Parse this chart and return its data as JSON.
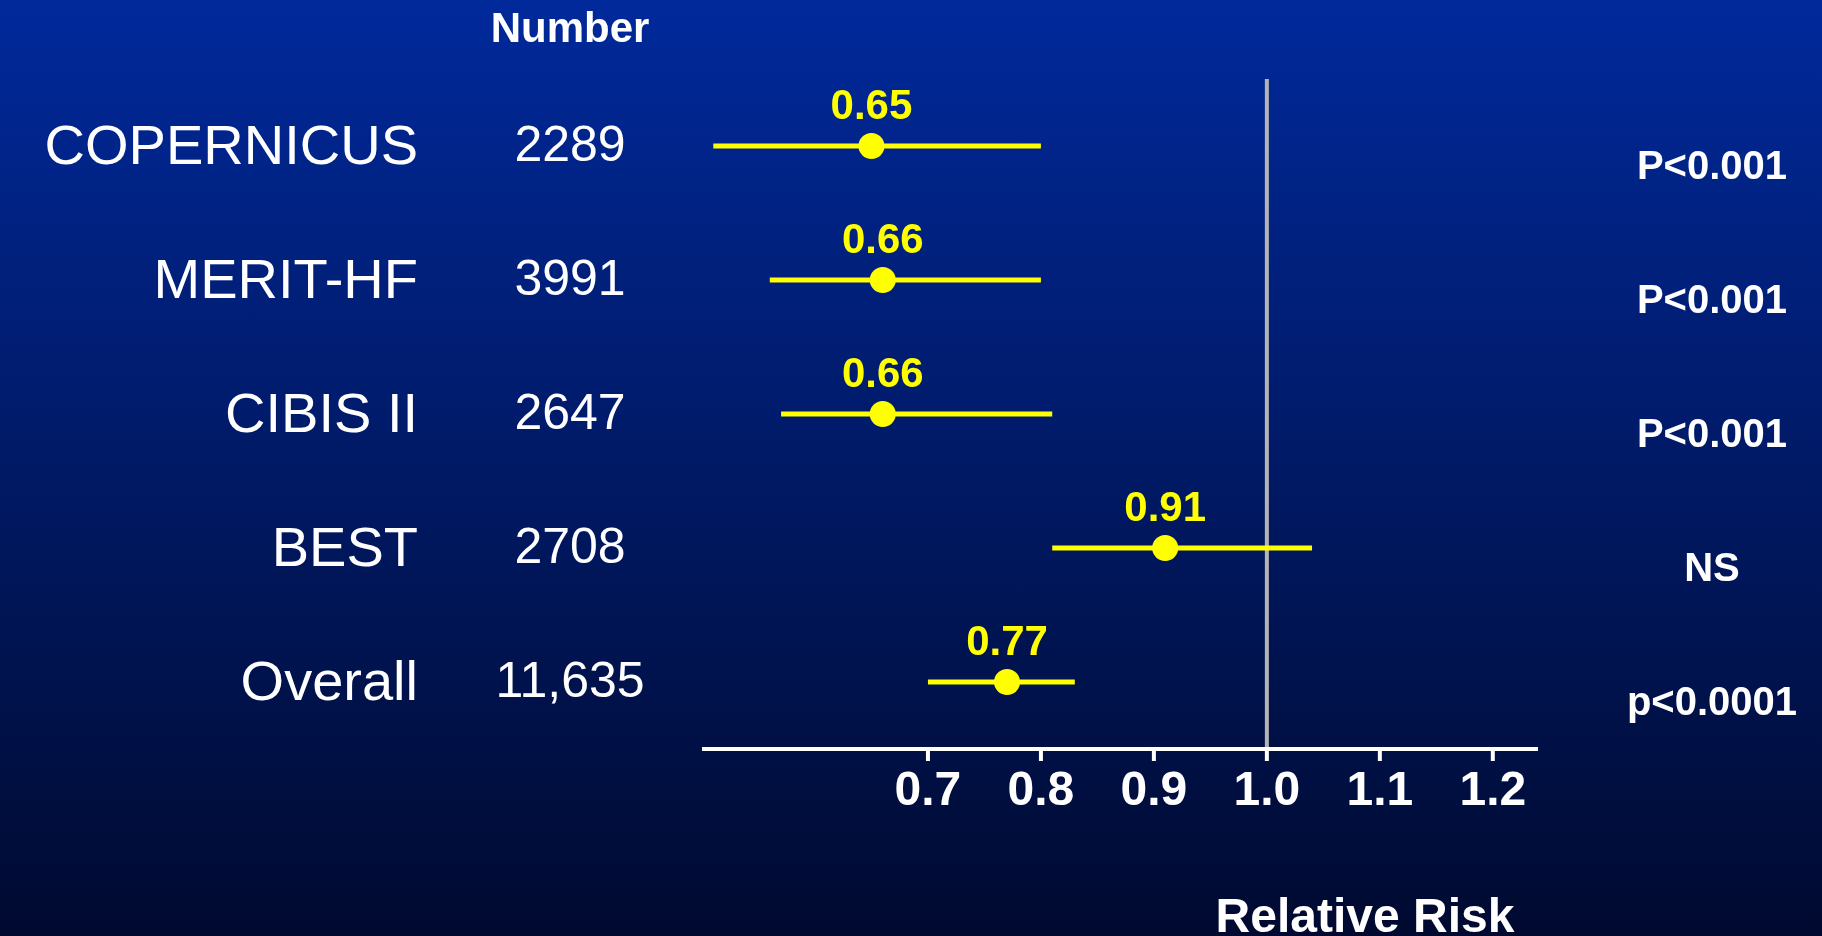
{
  "chart_data": {
    "type": "scatter",
    "orientation": "horizontal",
    "xlabel": "Relative Risk",
    "categories": [
      "COPERNICUS",
      "MERIT-HF",
      "CIBIS II",
      "BEST",
      "Overall"
    ],
    "values": [
      0.65,
      0.66,
      0.66,
      0.91,
      0.77
    ],
    "errors": [
      [
        0.51,
        0.8
      ],
      [
        0.56,
        0.8
      ],
      [
        0.57,
        0.81
      ],
      [
        0.81,
        1.04
      ],
      [
        0.7,
        0.83
      ]
    ],
    "color": "#ffff00",
    "data_labels": true,
    "marker": "circle",
    "grid": false,
    "legend": false,
    "xlim": [
      0.5,
      1.24
    ],
    "xticks": [
      0.7,
      0.8,
      0.9,
      {
        "value": 1.0,
        "label": "1.0"
      },
      1.1,
      1.2
    ],
    "ref_lines": [
      {
        "axis": "x",
        "value": 1.0,
        "color": "#b4b4b4"
      }
    ],
    "annotations": [
      "Number",
      "2289",
      "3991",
      "2647",
      "2708",
      "11,635",
      "P<0.001",
      "P<0.001",
      "P<0.001",
      "NS",
      "p<0.0001"
    ]
  }
}
